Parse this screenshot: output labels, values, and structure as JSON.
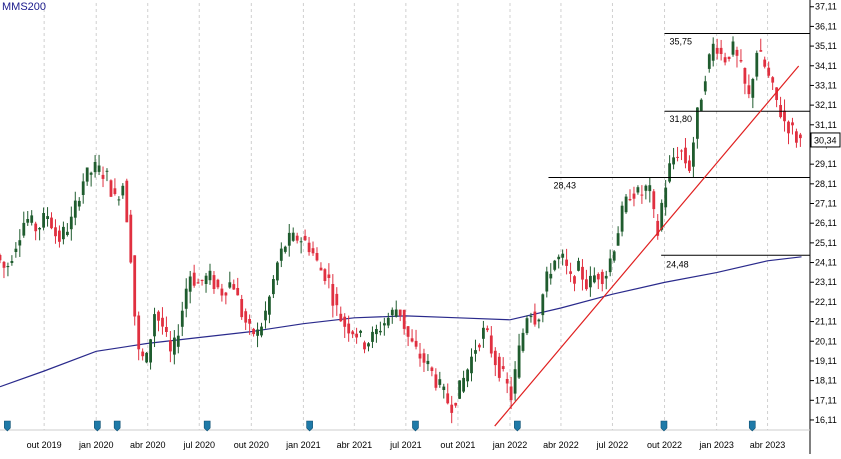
{
  "chart_data": {
    "type": "candlestick",
    "legend_label": "MMS200",
    "ylim": [
      15.6,
      37.3
    ],
    "y_ticks": [
      16.11,
      17.11,
      18.11,
      19.11,
      20.11,
      21.11,
      22.11,
      23.11,
      24.11,
      25.11,
      26.11,
      27.11,
      28.11,
      29.11,
      30.11,
      31.11,
      32.11,
      33.11,
      34.11,
      35.11,
      36.11,
      37.11
    ],
    "y_tick_labels": [
      "16,11",
      "17,11",
      "18,11",
      "19,11",
      "20,11",
      "21,11",
      "22,11",
      "23,11",
      "24,11",
      "25,11",
      "26,11",
      "27,11",
      "28,11",
      "29,11",
      "30,11",
      "31,11",
      "32,11",
      "33,11",
      "34,11",
      "35,11",
      "36,11",
      "37,11"
    ],
    "x_range": [
      "2019-07-15",
      "2023-06-15"
    ],
    "x_ticks": [
      {
        "date": "2019-10-01",
        "label": "out 2019"
      },
      {
        "date": "2020-01-01",
        "label": "jan 2020"
      },
      {
        "date": "2020-04-01",
        "label": "abr 2020"
      },
      {
        "date": "2020-07-01",
        "label": "jul 2020"
      },
      {
        "date": "2020-10-01",
        "label": "out 2020"
      },
      {
        "date": "2021-01-01",
        "label": "jan 2021"
      },
      {
        "date": "2021-04-01",
        "label": "abr 2021"
      },
      {
        "date": "2021-07-01",
        "label": "jul 2021"
      },
      {
        "date": "2021-10-01",
        "label": "out 2021"
      },
      {
        "date": "2022-01-01",
        "label": "jan 2022"
      },
      {
        "date": "2022-04-01",
        "label": "abr 2022"
      },
      {
        "date": "2022-07-01",
        "label": "jul 2022"
      },
      {
        "date": "2022-10-01",
        "label": "out 2022"
      },
      {
        "date": "2023-01-01",
        "label": "jan 2023"
      },
      {
        "date": "2023-04-01",
        "label": "abr 2023"
      }
    ],
    "grid": {
      "vertical": true,
      "horizontal": false
    },
    "last_price_label": "30,34",
    "last_price": 30.34,
    "price_path": [
      [
        "2019-07-15",
        24.5
      ],
      [
        "2019-08-01",
        23.7
      ],
      [
        "2019-08-20",
        25.2
      ],
      [
        "2019-09-05",
        26.4
      ],
      [
        "2019-09-25",
        25.8
      ],
      [
        "2019-10-15",
        26.6
      ],
      [
        "2019-11-01",
        25.2
      ],
      [
        "2019-11-25",
        26.2
      ],
      [
        "2019-12-15",
        28.3
      ],
      [
        "2020-01-05",
        28.9
      ],
      [
        "2020-01-25",
        28.6
      ],
      [
        "2020-02-10",
        27.3
      ],
      [
        "2020-02-25",
        28.2
      ],
      [
        "2020-03-10",
        24.2
      ],
      [
        "2020-03-20",
        19.6
      ],
      [
        "2020-04-05",
        19.0
      ],
      [
        "2020-04-20",
        21.6
      ],
      [
        "2020-05-05",
        20.8
      ],
      [
        "2020-05-20",
        19.2
      ],
      [
        "2020-06-05",
        21.3
      ],
      [
        "2020-06-20",
        23.6
      ],
      [
        "2020-07-05",
        23.0
      ],
      [
        "2020-07-25",
        23.4
      ],
      [
        "2020-08-15",
        22.6
      ],
      [
        "2020-09-05",
        23.2
      ],
      [
        "2020-09-20",
        21.6
      ],
      [
        "2020-10-05",
        20.6
      ],
      [
        "2020-10-20",
        20.5
      ],
      [
        "2020-11-05",
        21.8
      ],
      [
        "2020-11-25",
        24.3
      ],
      [
        "2020-12-10",
        25.2
      ],
      [
        "2021-01-01",
        25.4
      ],
      [
        "2021-01-20",
        24.9
      ],
      [
        "2021-02-05",
        23.8
      ],
      [
        "2021-02-20",
        23.4
      ],
      [
        "2021-03-05",
        21.9
      ],
      [
        "2021-03-20",
        21.0
      ],
      [
        "2021-04-10",
        20.6
      ],
      [
        "2021-04-25",
        20.0
      ],
      [
        "2021-05-10",
        20.3
      ],
      [
        "2021-05-25",
        20.9
      ],
      [
        "2021-06-10",
        21.4
      ],
      [
        "2021-06-25",
        21.9
      ],
      [
        "2021-07-10",
        20.4
      ],
      [
        "2021-07-25",
        19.6
      ],
      [
        "2021-08-15",
        18.9
      ],
      [
        "2021-09-05",
        17.8
      ],
      [
        "2021-09-25",
        16.8
      ],
      [
        "2021-10-10",
        17.6
      ],
      [
        "2021-10-25",
        18.7
      ],
      [
        "2021-11-10",
        20.0
      ],
      [
        "2021-11-25",
        20.7
      ],
      [
        "2021-12-10",
        19.3
      ],
      [
        "2021-12-25",
        18.4
      ],
      [
        "2022-01-10",
        17.3
      ],
      [
        "2022-01-25",
        19.8
      ],
      [
        "2022-02-10",
        21.9
      ],
      [
        "2022-02-25",
        21.1
      ],
      [
        "2022-03-10",
        22.9
      ],
      [
        "2022-03-25",
        24.2
      ],
      [
        "2022-04-10",
        24.3
      ],
      [
        "2022-04-25",
        23.2
      ],
      [
        "2022-05-10",
        23.8
      ],
      [
        "2022-05-25",
        22.9
      ],
      [
        "2022-06-10",
        23.6
      ],
      [
        "2022-06-25",
        23.4
      ],
      [
        "2022-07-10",
        24.9
      ],
      [
        "2022-07-25",
        26.6
      ],
      [
        "2022-08-10",
        27.8
      ],
      [
        "2022-08-25",
        27.5
      ],
      [
        "2022-09-10",
        28.0
      ],
      [
        "2022-09-25",
        25.4
      ],
      [
        "2022-10-05",
        27.5
      ],
      [
        "2022-10-20",
        29.3
      ],
      [
        "2022-11-05",
        29.9
      ],
      [
        "2022-11-20",
        28.8
      ],
      [
        "2022-12-05",
        31.6
      ],
      [
        "2022-12-20",
        33.9
      ],
      [
        "2023-01-05",
        35.4
      ],
      [
        "2023-01-20",
        34.4
      ],
      [
        "2023-02-05",
        35.0
      ],
      [
        "2023-02-20",
        33.9
      ],
      [
        "2023-03-05",
        32.3
      ],
      [
        "2023-03-20",
        34.9
      ],
      [
        "2023-04-05",
        33.9
      ],
      [
        "2023-04-20",
        32.6
      ],
      [
        "2023-05-05",
        31.4
      ],
      [
        "2023-05-20",
        30.9
      ],
      [
        "2023-05-31",
        30.34
      ]
    ],
    "moving_average": {
      "name": "MMS200",
      "color": "#2a2a8c",
      "points": [
        [
          "2019-07-15",
          17.8
        ],
        [
          "2019-10-01",
          18.6
        ],
        [
          "2020-01-01",
          19.6
        ],
        [
          "2020-04-01",
          20.0
        ],
        [
          "2020-07-01",
          20.3
        ],
        [
          "2020-10-01",
          20.6
        ],
        [
          "2021-01-01",
          21.0
        ],
        [
          "2021-04-01",
          21.3
        ],
        [
          "2021-07-01",
          21.4
        ],
        [
          "2021-10-01",
          21.3
        ],
        [
          "2022-01-01",
          21.2
        ],
        [
          "2022-04-01",
          21.8
        ],
        [
          "2022-07-01",
          22.5
        ],
        [
          "2022-10-01",
          23.1
        ],
        [
          "2023-01-01",
          23.6
        ],
        [
          "2023-04-01",
          24.2
        ],
        [
          "2023-05-31",
          24.4
        ]
      ]
    },
    "horizontal_levels": [
      {
        "value": 35.75,
        "label": "35,75",
        "from": "2022-10-01",
        "to": "2023-06-15"
      },
      {
        "value": 31.8,
        "label": "31,80",
        "from": "2022-10-01",
        "to": "2023-06-15"
      },
      {
        "value": 28.43,
        "label": "28,43",
        "from": "2022-03-10",
        "to": "2023-06-15"
      },
      {
        "value": 24.48,
        "label": "24,48",
        "from": "2022-09-25",
        "to": "2023-06-15"
      }
    ],
    "trendline": {
      "color": "#e02020",
      "from": [
        "2021-12-05",
        15.8
      ],
      "to": [
        "2023-05-26",
        34.1
      ]
    },
    "event_markers": [
      "2019-07-28",
      "2020-01-03",
      "2020-02-07",
      "2020-07-15",
      "2021-01-12",
      "2021-07-18",
      "2022-01-14",
      "2022-09-30",
      "2023-03-05"
    ],
    "colors": {
      "up": "#1f5c2e",
      "down": "#e03040",
      "grid": "#d0d0d0",
      "levels": "#000000",
      "marker": "#1f7aa8",
      "legend_text": "#1a1a8c"
    }
  }
}
